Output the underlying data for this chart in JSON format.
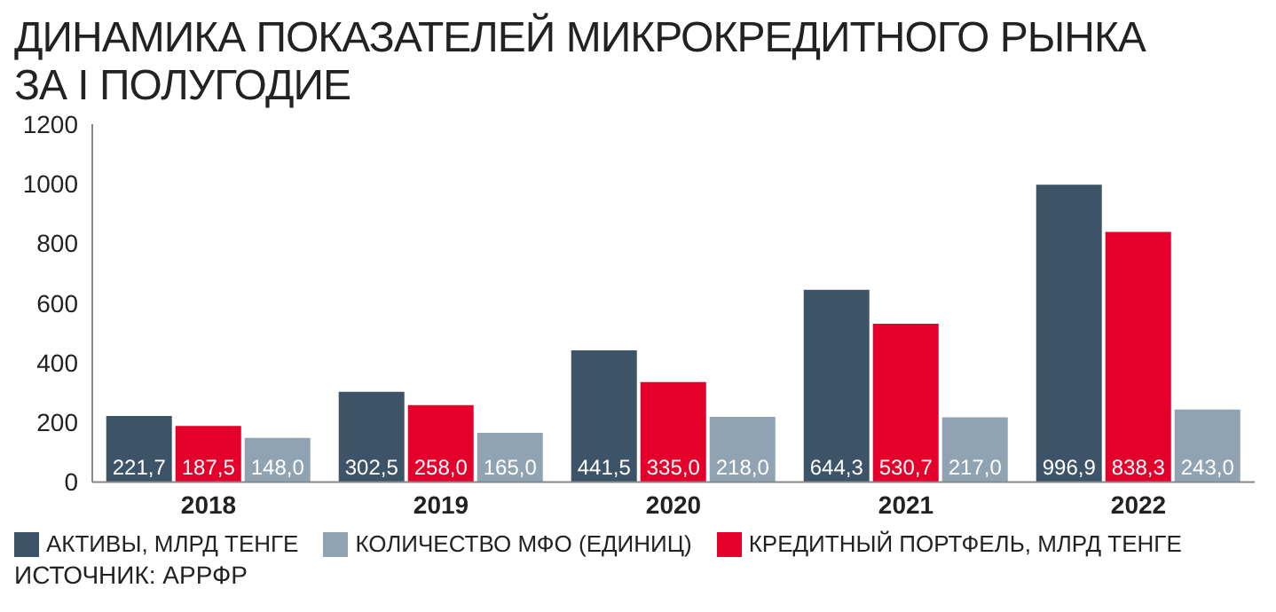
{
  "chart_data": {
    "type": "bar",
    "title": "ДИНАМИКА ПОКАЗАТЕЛЕЙ МИКРОКРЕДИТНОГО РЫНКА ЗА I ПОЛУГОДИЕ",
    "categories": [
      "2018",
      "2019",
      "2020",
      "2021",
      "2022"
    ],
    "series": [
      {
        "name": "АКТИВЫ, МЛРД ТЕНГЕ",
        "color": "#3d5468",
        "values": [
          221.7,
          302.5,
          441.5,
          644.3,
          996.9
        ],
        "value_labels": [
          "221,7",
          "302,5",
          "441,5",
          "644,3",
          "996,9"
        ]
      },
      {
        "name": "КРЕДИТНЫЙ ПОРТФЕЛЬ, МЛРД ТЕНГЕ",
        "color": "#e4002b",
        "values": [
          187.5,
          258.0,
          335.0,
          530.7,
          838.3
        ],
        "value_labels": [
          "187,5",
          "258,0",
          "335,0",
          "530,7",
          "838,3"
        ]
      },
      {
        "name": "КОЛИЧЕСТВО МФО (ЕДИНИЦ)",
        "color": "#8fa3b3",
        "values": [
          148.0,
          165.0,
          218.0,
          217.0,
          243.0
        ],
        "value_labels": [
          "148,0",
          "165,0",
          "218,0",
          "217,0",
          "243,0"
        ]
      }
    ],
    "ylim": [
      0,
      1200
    ],
    "yticks": [
      0,
      200,
      400,
      600,
      800,
      1000,
      1200
    ],
    "grid": false,
    "legend": "bottom",
    "annotations": [
      "ИСТОЧНИК: АРРФР"
    ]
  }
}
